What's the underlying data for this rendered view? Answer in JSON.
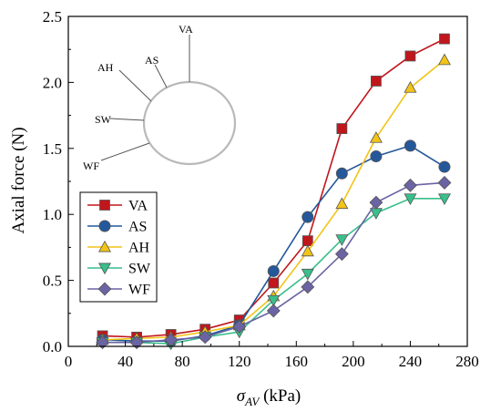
{
  "chart_data": {
    "type": "line",
    "title": "",
    "xlabel": "σ",
    "xlabel_sub": "AV",
    "xlabel_unit": " (kPa)",
    "ylabel": "Axial force (N)",
    "xlim": [
      0,
      280
    ],
    "ylim": [
      0,
      2.5
    ],
    "xticks": [
      "0",
      "40",
      "80",
      "120",
      "160",
      "200",
      "240",
      "280"
    ],
    "yticks": [
      "0.0",
      "0.5",
      "1.0",
      "1.5",
      "2.0",
      "2.5"
    ],
    "grid": false,
    "legend_position": "center-left",
    "x": [
      24,
      48,
      72,
      96,
      120,
      144,
      168,
      192,
      216,
      240,
      264
    ],
    "series": [
      {
        "name": "VA",
        "marker": "square",
        "color": "#c0161c",
        "values": [
          0.08,
          0.07,
          0.09,
          0.13,
          0.2,
          0.48,
          0.8,
          1.65,
          2.01,
          2.2,
          2.33
        ]
      },
      {
        "name": "AS",
        "marker": "circle",
        "color": "#24589a",
        "values": [
          0.05,
          0.04,
          0.04,
          0.08,
          0.16,
          0.57,
          0.98,
          1.31,
          1.44,
          1.52,
          1.36
        ]
      },
      {
        "name": "AH",
        "marker": "triangle-up",
        "color": "#f2c418",
        "values": [
          0.05,
          0.06,
          0.07,
          0.11,
          0.16,
          0.38,
          0.72,
          1.08,
          1.58,
          1.96,
          2.17
        ]
      },
      {
        "name": "SW",
        "marker": "triangle-down",
        "color": "#39bf8b",
        "values": [
          0.03,
          0.03,
          0.02,
          0.07,
          0.11,
          0.35,
          0.55,
          0.81,
          1.01,
          1.12,
          1.12
        ]
      },
      {
        "name": "WF",
        "marker": "diamond",
        "color": "#6a64a4",
        "values": [
          0.03,
          0.03,
          0.05,
          0.07,
          0.15,
          0.27,
          0.45,
          0.7,
          1.09,
          1.22,
          1.24
        ]
      }
    ],
    "inset_labels": [
      "VA",
      "AS",
      "AH",
      "SW",
      "WF"
    ]
  }
}
